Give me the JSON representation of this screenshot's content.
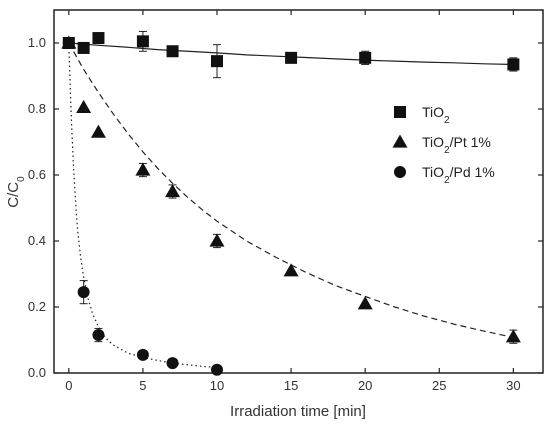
{
  "chart_data": {
    "type": "scatter",
    "xlabel": "Irradiation time [min]",
    "ylabel": "C/C0",
    "xlim": [
      -1,
      32
    ],
    "ylim": [
      0,
      1.1
    ],
    "xticks": [
      0,
      5,
      10,
      15,
      20,
      25,
      30
    ],
    "yticks": [
      0.0,
      0.2,
      0.4,
      0.6,
      0.8,
      1.0
    ],
    "xtick_labels": [
      "0",
      "5",
      "10",
      "15",
      "20",
      "25",
      "30"
    ],
    "ytick_labels": [
      "0.0",
      "0.2",
      "0.4",
      "0.6",
      "0.8",
      "1.0"
    ],
    "legend_position": "top-right",
    "series": [
      {
        "name": "TiO2",
        "marker": "square",
        "fit_line": "solid",
        "x": [
          0,
          1,
          2,
          5,
          7,
          10,
          15,
          20,
          30
        ],
        "y": [
          1.0,
          0.985,
          1.015,
          1.005,
          0.975,
          0.945,
          0.955,
          0.955,
          0.935
        ],
        "err": [
          0.01,
          0.01,
          0.01,
          0.03,
          0.01,
          0.05,
          0.01,
          0.02,
          0.02
        ],
        "fit_x": [
          0,
          2,
          4,
          6,
          8,
          10,
          12,
          14,
          16,
          18,
          20,
          22,
          24,
          26,
          28,
          30
        ],
        "fit_y": [
          1.0,
          0.993,
          0.987,
          0.98,
          0.975,
          0.97,
          0.964,
          0.96,
          0.956,
          0.952,
          0.948,
          0.945,
          0.942,
          0.94,
          0.937,
          0.935
        ]
      },
      {
        "name": "TiO2/Pt 1%",
        "marker": "triangle",
        "fit_line": "dashed",
        "x": [
          0,
          1,
          2,
          5,
          7,
          10,
          15,
          20,
          30
        ],
        "y": [
          1.0,
          0.805,
          0.73,
          0.615,
          0.55,
          0.4,
          0.31,
          0.21,
          0.11
        ],
        "err": [
          0.01,
          0.01,
          0.01,
          0.02,
          0.02,
          0.02,
          0.01,
          0.01,
          0.02
        ],
        "fit_x": [
          0,
          1,
          2,
          3,
          4,
          5,
          6,
          7,
          8,
          9,
          10,
          12,
          14,
          16,
          18,
          20,
          22,
          24,
          26,
          28,
          30
        ],
        "fit_y": [
          1.0,
          0.92,
          0.85,
          0.785,
          0.725,
          0.67,
          0.62,
          0.575,
          0.533,
          0.495,
          0.46,
          0.4,
          0.35,
          0.305,
          0.265,
          0.232,
          0.2,
          0.172,
          0.148,
          0.127,
          0.108
        ]
      },
      {
        "name": "TiO2/Pd 1%",
        "marker": "circle",
        "fit_line": "dotted",
        "x": [
          0,
          1,
          2,
          5,
          7,
          10
        ],
        "y": [
          1.0,
          0.245,
          0.115,
          0.055,
          0.03,
          0.01
        ],
        "err": [
          0.01,
          0.035,
          0.02,
          0.01,
          0.01,
          0.005
        ],
        "fit_x": [
          0,
          0.1,
          0.2,
          0.3,
          0.4,
          0.5,
          0.6,
          0.8,
          1.0,
          1.3,
          1.6,
          2.0,
          2.5,
          3,
          4,
          5,
          6,
          7,
          8,
          9,
          10
        ],
        "fit_y": [
          1.0,
          0.86,
          0.74,
          0.64,
          0.56,
          0.49,
          0.43,
          0.35,
          0.29,
          0.225,
          0.18,
          0.14,
          0.105,
          0.085,
          0.06,
          0.047,
          0.038,
          0.03,
          0.025,
          0.02,
          0.017
        ]
      }
    ]
  }
}
